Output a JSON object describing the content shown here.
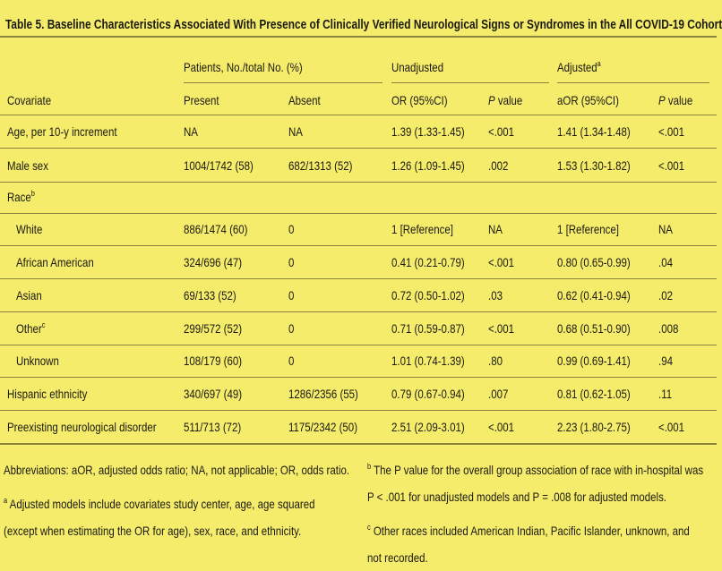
{
  "title": "Table 5. Baseline Characteristics Associated With Presence of Clinically Verified Neurological Signs or Syndromes in the All COVID-19 Cohort",
  "header": {
    "groups": [
      {
        "text": "Patients, No./total No. (%)"
      },
      {
        "text": "Unadjusted"
      },
      {
        "text": "Adjusted",
        "sup": "a"
      }
    ],
    "columns": [
      "Covariate",
      "Present",
      "Absent",
      "OR (95%CI)",
      "P value",
      "aOR (95%CI)",
      "P value"
    ]
  },
  "rows": [
    {
      "label": "Age, per 10-y increment",
      "values": [
        "NA",
        "NA",
        "1.39 (1.33-1.45)",
        "<.001",
        "1.41 (1.34-1.48)",
        "<.001"
      ]
    },
    {
      "label": "Male sex",
      "values": [
        "1004/1742 (58)",
        "682/1313 (52)",
        "1.26 (1.09-1.45)",
        ".002",
        "1.53 (1.30-1.82)",
        "<.001"
      ]
    },
    {
      "label": "Race",
      "sup": "b",
      "subrows": [
        {
          "label": "White",
          "values": [
            "886/1474 (60)",
            "0",
            "1 [Reference]",
            "NA",
            "1 [Reference]",
            "NA"
          ]
        },
        {
          "label": "African American",
          "values": [
            "324/696 (47)",
            "0",
            "0.41 (0.21-0.79)",
            "<.001",
            "0.80 (0.65-0.99)",
            ".04"
          ]
        },
        {
          "label": "Asian",
          "values": [
            "69/133 (52)",
            "0",
            "0.72 (0.50-1.02)",
            ".03",
            "0.62 (0.41-0.94)",
            ".02"
          ]
        },
        {
          "label": "Other",
          "sup": "c",
          "values": [
            "299/572 (52)",
            "0",
            "0.71 (0.59-0.87)",
            "<.001",
            "0.68 (0.51-0.90)",
            ".008"
          ]
        },
        {
          "label": "Unknown",
          "values": [
            "108/179 (60)",
            "0",
            "1.01 (0.74-1.39)",
            ".80",
            "0.99 (0.69-1.41)",
            ".94"
          ]
        }
      ]
    },
    {
      "label": "Hispanic ethnicity",
      "values": [
        "340/697 (49)",
        "1286/2356 (55)",
        "0.79 (0.67-0.94)",
        ".007",
        "0.81 (0.62-1.05)",
        ".11"
      ]
    },
    {
      "label": "Preexisting neurological disorder",
      "values": [
        "511/713 (72)",
        "1175/2342 (50)",
        "2.51 (2.09-3.01)",
        "<.001",
        "2.23 (1.80-2.75)",
        "<.001"
      ]
    }
  ],
  "footnotes": {
    "abbreviations": "Abbreviations: aOR, adjusted odds ratio; NA, not applicable; OR, odds ratio.",
    "notes": [
      {
        "mark": "a",
        "text": "Adjusted models include covariates study center, age, age squared (except when estimating the OR for age), sex, race, and ethnicity."
      },
      {
        "mark": "b",
        "text": "The P value for the overall group association of race with in-hospital was P < .001 for unadjusted models and P = .008 for adjusted models."
      },
      {
        "mark": "c",
        "text": "Other races included American Indian, Pacific Islander, unknown, and not recorded."
      }
    ]
  }
}
